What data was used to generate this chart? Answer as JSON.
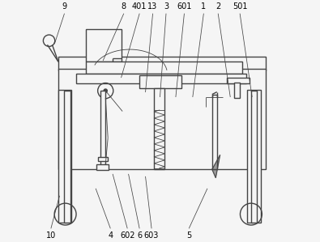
{
  "bg_color": "#f5f5f5",
  "line_color": "#444444",
  "lw": 1.0,
  "tlw": 0.6,
  "font_size": 7.0,
  "top_labels": {
    "9": [
      0.105,
      0.955,
      0.065,
      0.82
    ],
    "8": [
      0.35,
      0.955,
      0.265,
      0.75
    ],
    "401": [
      0.415,
      0.955,
      0.34,
      0.68
    ],
    "13": [
      0.47,
      0.955,
      0.44,
      0.62
    ],
    "3": [
      0.525,
      0.955,
      0.5,
      0.6
    ],
    "601": [
      0.6,
      0.955,
      0.565,
      0.6
    ],
    "1": [
      0.68,
      0.955,
      0.635,
      0.6
    ],
    "2": [
      0.74,
      0.955,
      0.79,
      0.6
    ],
    "501": [
      0.83,
      0.955,
      0.88,
      0.6
    ]
  },
  "bot_labels": {
    "10": [
      0.05,
      0.045,
      0.085,
      0.19
    ],
    "4": [
      0.295,
      0.045,
      0.235,
      0.22
    ],
    "602": [
      0.365,
      0.045,
      0.305,
      0.28
    ],
    "6": [
      0.415,
      0.045,
      0.37,
      0.28
    ],
    "603": [
      0.465,
      0.045,
      0.44,
      0.27
    ],
    "5": [
      0.62,
      0.045,
      0.695,
      0.22
    ]
  }
}
